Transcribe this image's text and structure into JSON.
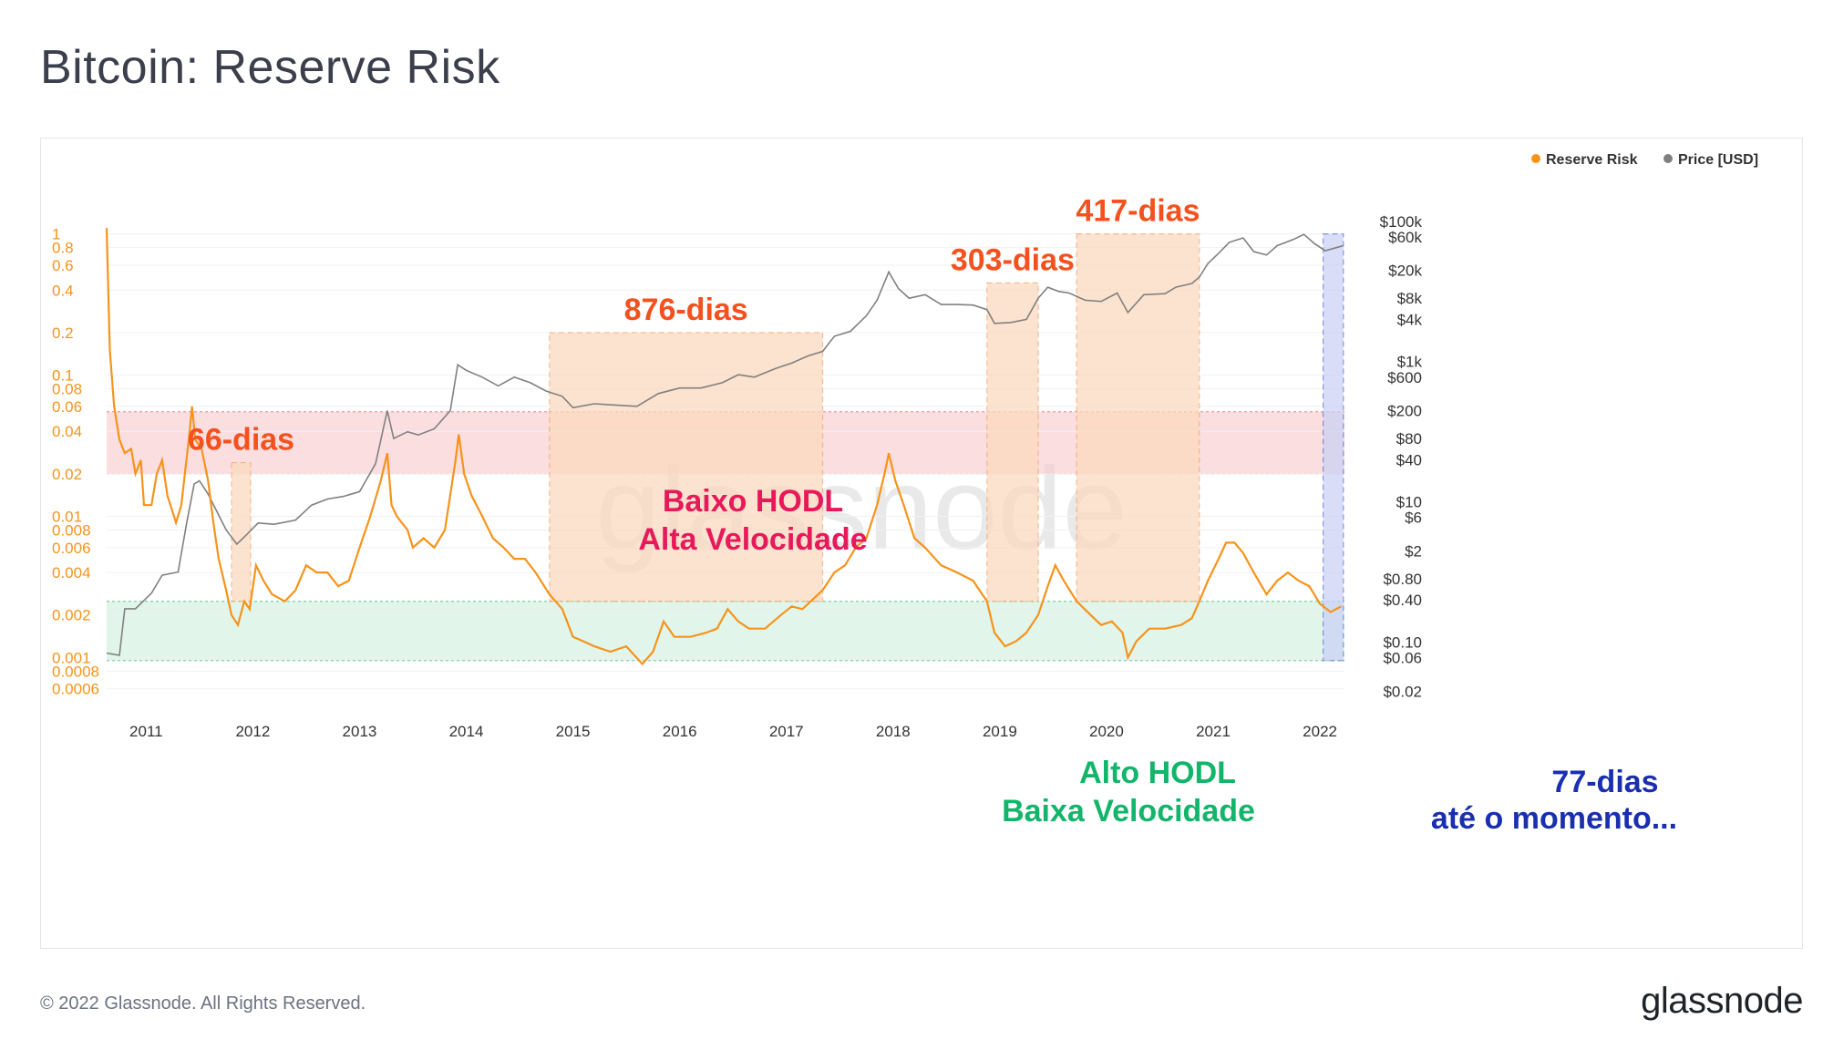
{
  "header": {
    "title": "Bitcoin: Reserve Risk"
  },
  "footer": {
    "copyright": "© 2022 Glassnode. All Rights Reserved.",
    "brand": "glassnode"
  },
  "watermark": "glassnode",
  "colors": {
    "reserve_risk": "#f7931a",
    "price": "#808080",
    "high_band": "#f9c8cc",
    "low_band": "#cdeedd",
    "period": "#fcd9bd",
    "current": "#c9d0f5",
    "orange_text": "#f4511e",
    "red_text": "#e8195a",
    "green_text": "#12b56a",
    "blue_text": "#1a2fb0"
  },
  "chart_data": {
    "type": "line",
    "title": "Bitcoin: Reserve Risk",
    "legend": [
      {
        "name": "Reserve Risk",
        "color": "#f7931a"
      },
      {
        "name": "Price [USD]",
        "color": "#808080"
      }
    ],
    "legend_position": "top-right",
    "x_ticks": [
      "2011",
      "2012",
      "2013",
      "2014",
      "2015",
      "2016",
      "2017",
      "2018",
      "2019",
      "2020",
      "2021",
      "2022"
    ],
    "x_range": [
      2010.63,
      2022.23
    ],
    "y_left": {
      "scale": "log",
      "range": [
        0.0005,
        1.4
      ],
      "ticks": [
        {
          "v": 1,
          "t": "1"
        },
        {
          "v": 0.8,
          "t": "0.8"
        },
        {
          "v": 0.6,
          "t": "0.6"
        },
        {
          "v": 0.4,
          "t": "0.4"
        },
        {
          "v": 0.2,
          "t": "0.2"
        },
        {
          "v": 0.1,
          "t": "0.1"
        },
        {
          "v": 0.08,
          "t": "0.08"
        },
        {
          "v": 0.06,
          "t": "0.06"
        },
        {
          "v": 0.04,
          "t": "0.04"
        },
        {
          "v": 0.02,
          "t": "0.02"
        },
        {
          "v": 0.01,
          "t": "0.01"
        },
        {
          "v": 0.008,
          "t": "0.008"
        },
        {
          "v": 0.006,
          "t": "0.006"
        },
        {
          "v": 0.004,
          "t": "0.004"
        },
        {
          "v": 0.002,
          "t": "0.002"
        },
        {
          "v": 0.001,
          "t": "0.001"
        },
        {
          "v": 0.0008,
          "t": "0.0008"
        },
        {
          "v": 0.0006,
          "t": "0.0006"
        }
      ]
    },
    "y_right": {
      "scale": "log",
      "range": [
        0.015,
        130000
      ],
      "ticks": [
        {
          "v": 100000,
          "t": "$100k"
        },
        {
          "v": 60000,
          "t": "$60k"
        },
        {
          "v": 20000,
          "t": "$20k"
        },
        {
          "v": 8000,
          "t": "$8k"
        },
        {
          "v": 4000,
          "t": "$4k"
        },
        {
          "v": 1000,
          "t": "$1k"
        },
        {
          "v": 600,
          "t": "$600"
        },
        {
          "v": 200,
          "t": "$200"
        },
        {
          "v": 80,
          "t": "$80"
        },
        {
          "v": 40,
          "t": "$40"
        },
        {
          "v": 10,
          "t": "$10"
        },
        {
          "v": 6,
          "t": "$6"
        },
        {
          "v": 2,
          "t": "$2"
        },
        {
          "v": 0.8,
          "t": "$0.80"
        },
        {
          "v": 0.4,
          "t": "$0.40"
        },
        {
          "v": 0.1,
          "t": "$0.10"
        },
        {
          "v": 0.06,
          "t": "$0.06"
        },
        {
          "v": 0.02,
          "t": "$0.02"
        }
      ]
    },
    "bands": [
      {
        "name": "high-band",
        "from": 0.02,
        "to": 0.055,
        "color": "#f9c8cc"
      },
      {
        "name": "low-band",
        "from": 0.00095,
        "to": 0.0025,
        "color": "#cdeedd"
      }
    ],
    "periods": [
      {
        "label": "66-dias",
        "x0": 2011.8,
        "x1": 2011.98,
        "top": 0.024
      },
      {
        "label": "876-dias",
        "x0": 2014.78,
        "x1": 2017.34,
        "top": 0.2
      },
      {
        "label": "303-dias",
        "x0": 2018.88,
        "x1": 2019.36,
        "top": 0.45
      },
      {
        "label": "417-dias",
        "x0": 2019.72,
        "x1": 2020.87,
        "top": 1.0
      }
    ],
    "current_period": {
      "label": "77-dias",
      "sublabel": "até o momento...",
      "x0": 2022.03,
      "x1": 2022.22,
      "top": 1.0
    },
    "labels": {
      "high": [
        "Baixo HODL",
        "Alta Velocidade"
      ],
      "low": [
        "Alto HODL",
        "Baixa Velocidade"
      ]
    },
    "reserve_risk": [
      [
        2010.63,
        1.1
      ],
      [
        2010.66,
        0.15
      ],
      [
        2010.7,
        0.06
      ],
      [
        2010.75,
        0.035
      ],
      [
        2010.8,
        0.028
      ],
      [
        2010.86,
        0.03
      ],
      [
        2010.9,
        0.02
      ],
      [
        2010.95,
        0.025
      ],
      [
        2010.98,
        0.012
      ],
      [
        2011.05,
        0.012
      ],
      [
        2011.1,
        0.02
      ],
      [
        2011.15,
        0.025
      ],
      [
        2011.2,
        0.014
      ],
      [
        2011.28,
        0.009
      ],
      [
        2011.33,
        0.012
      ],
      [
        2011.4,
        0.035
      ],
      [
        2011.43,
        0.06
      ],
      [
        2011.46,
        0.035
      ],
      [
        2011.52,
        0.03
      ],
      [
        2011.58,
        0.018
      ],
      [
        2011.63,
        0.009
      ],
      [
        2011.68,
        0.005
      ],
      [
        2011.75,
        0.003
      ],
      [
        2011.8,
        0.002
      ],
      [
        2011.86,
        0.0017
      ],
      [
        2011.92,
        0.0025
      ],
      [
        2011.97,
        0.0022
      ],
      [
        2012.03,
        0.0045
      ],
      [
        2012.1,
        0.0035
      ],
      [
        2012.18,
        0.0028
      ],
      [
        2012.3,
        0.0025
      ],
      [
        2012.4,
        0.003
      ],
      [
        2012.5,
        0.0045
      ],
      [
        2012.6,
        0.004
      ],
      [
        2012.7,
        0.004
      ],
      [
        2012.8,
        0.0032
      ],
      [
        2012.9,
        0.0035
      ],
      [
        2013.0,
        0.006
      ],
      [
        2013.1,
        0.01
      ],
      [
        2013.2,
        0.018
      ],
      [
        2013.26,
        0.028
      ],
      [
        2013.3,
        0.012
      ],
      [
        2013.35,
        0.01
      ],
      [
        2013.45,
        0.008
      ],
      [
        2013.5,
        0.006
      ],
      [
        2013.6,
        0.007
      ],
      [
        2013.7,
        0.006
      ],
      [
        2013.8,
        0.008
      ],
      [
        2013.9,
        0.025
      ],
      [
        2013.93,
        0.038
      ],
      [
        2013.98,
        0.02
      ],
      [
        2014.05,
        0.014
      ],
      [
        2014.15,
        0.01
      ],
      [
        2014.25,
        0.007
      ],
      [
        2014.35,
        0.006
      ],
      [
        2014.45,
        0.005
      ],
      [
        2014.55,
        0.005
      ],
      [
        2014.65,
        0.004
      ],
      [
        2014.78,
        0.0028
      ],
      [
        2014.9,
        0.0022
      ],
      [
        2015.0,
        0.0014
      ],
      [
        2015.1,
        0.0013
      ],
      [
        2015.2,
        0.0012
      ],
      [
        2015.35,
        0.0011
      ],
      [
        2015.5,
        0.0012
      ],
      [
        2015.65,
        0.0009
      ],
      [
        2015.75,
        0.0011
      ],
      [
        2015.85,
        0.0018
      ],
      [
        2015.95,
        0.0014
      ],
      [
        2016.1,
        0.0014
      ],
      [
        2016.25,
        0.0015
      ],
      [
        2016.35,
        0.0016
      ],
      [
        2016.45,
        0.0022
      ],
      [
        2016.55,
        0.0018
      ],
      [
        2016.65,
        0.0016
      ],
      [
        2016.8,
        0.0016
      ],
      [
        2016.95,
        0.002
      ],
      [
        2017.05,
        0.0023
      ],
      [
        2017.15,
        0.0022
      ],
      [
        2017.34,
        0.003
      ],
      [
        2017.45,
        0.004
      ],
      [
        2017.55,
        0.0045
      ],
      [
        2017.65,
        0.006
      ],
      [
        2017.75,
        0.007
      ],
      [
        2017.85,
        0.012
      ],
      [
        2017.92,
        0.02
      ],
      [
        2017.96,
        0.028
      ],
      [
        2018.02,
        0.018
      ],
      [
        2018.1,
        0.012
      ],
      [
        2018.2,
        0.007
      ],
      [
        2018.3,
        0.006
      ],
      [
        2018.45,
        0.0045
      ],
      [
        2018.6,
        0.004
      ],
      [
        2018.75,
        0.0035
      ],
      [
        2018.88,
        0.0025
      ],
      [
        2018.95,
        0.0015
      ],
      [
        2019.05,
        0.0012
      ],
      [
        2019.15,
        0.0013
      ],
      [
        2019.25,
        0.0015
      ],
      [
        2019.36,
        0.002
      ],
      [
        2019.45,
        0.0032
      ],
      [
        2019.52,
        0.0045
      ],
      [
        2019.6,
        0.0035
      ],
      [
        2019.72,
        0.0025
      ],
      [
        2019.85,
        0.002
      ],
      [
        2019.95,
        0.0017
      ],
      [
        2020.05,
        0.0018
      ],
      [
        2020.15,
        0.0015
      ],
      [
        2020.2,
        0.001
      ],
      [
        2020.28,
        0.0013
      ],
      [
        2020.4,
        0.0016
      ],
      [
        2020.55,
        0.0016
      ],
      [
        2020.7,
        0.0017
      ],
      [
        2020.8,
        0.0019
      ],
      [
        2020.87,
        0.0025
      ],
      [
        2020.95,
        0.0035
      ],
      [
        2021.05,
        0.005
      ],
      [
        2021.12,
        0.0065
      ],
      [
        2021.2,
        0.0065
      ],
      [
        2021.28,
        0.0055
      ],
      [
        2021.38,
        0.004
      ],
      [
        2021.5,
        0.0028
      ],
      [
        2021.6,
        0.0035
      ],
      [
        2021.7,
        0.004
      ],
      [
        2021.8,
        0.0035
      ],
      [
        2021.9,
        0.0032
      ],
      [
        2022.0,
        0.0024
      ],
      [
        2022.1,
        0.0021
      ],
      [
        2022.2,
        0.0023
      ]
    ],
    "price_usd": [
      [
        2010.63,
        0.07
      ],
      [
        2010.75,
        0.065
      ],
      [
        2010.8,
        0.3
      ],
      [
        2010.9,
        0.3
      ],
      [
        2011.05,
        0.5
      ],
      [
        2011.15,
        0.9
      ],
      [
        2011.3,
        1.0
      ],
      [
        2011.38,
        5
      ],
      [
        2011.45,
        18
      ],
      [
        2011.5,
        20
      ],
      [
        2011.58,
        13
      ],
      [
        2011.65,
        8
      ],
      [
        2011.75,
        4
      ],
      [
        2011.85,
        2.5
      ],
      [
        2011.95,
        3.5
      ],
      [
        2012.05,
        5
      ],
      [
        2012.2,
        4.8
      ],
      [
        2012.4,
        5.5
      ],
      [
        2012.55,
        9
      ],
      [
        2012.7,
        11
      ],
      [
        2012.85,
        12
      ],
      [
        2013.0,
        14
      ],
      [
        2013.15,
        35
      ],
      [
        2013.26,
        200
      ],
      [
        2013.32,
        80
      ],
      [
        2013.45,
        100
      ],
      [
        2013.55,
        90
      ],
      [
        2013.7,
        110
      ],
      [
        2013.85,
        200
      ],
      [
        2013.92,
        900
      ],
      [
        2014.0,
        750
      ],
      [
        2014.15,
        600
      ],
      [
        2014.3,
        450
      ],
      [
        2014.45,
        600
      ],
      [
        2014.6,
        500
      ],
      [
        2014.75,
        380
      ],
      [
        2014.9,
        320
      ],
      [
        2015.0,
        220
      ],
      [
        2015.2,
        250
      ],
      [
        2015.4,
        240
      ],
      [
        2015.6,
        230
      ],
      [
        2015.8,
        350
      ],
      [
        2016.0,
        420
      ],
      [
        2016.2,
        420
      ],
      [
        2016.4,
        500
      ],
      [
        2016.55,
        650
      ],
      [
        2016.7,
        600
      ],
      [
        2016.9,
        800
      ],
      [
        2017.05,
        950
      ],
      [
        2017.2,
        1200
      ],
      [
        2017.34,
        1400
      ],
      [
        2017.45,
        2300
      ],
      [
        2017.6,
        2700
      ],
      [
        2017.75,
        4500
      ],
      [
        2017.85,
        7500
      ],
      [
        2017.96,
        19000
      ],
      [
        2018.05,
        11000
      ],
      [
        2018.15,
        8000
      ],
      [
        2018.3,
        9000
      ],
      [
        2018.45,
        6500
      ],
      [
        2018.6,
        6500
      ],
      [
        2018.75,
        6400
      ],
      [
        2018.88,
        5500
      ],
      [
        2018.95,
        3500
      ],
      [
        2019.1,
        3600
      ],
      [
        2019.25,
        4000
      ],
      [
        2019.36,
        8000
      ],
      [
        2019.45,
        11500
      ],
      [
        2019.55,
        10000
      ],
      [
        2019.65,
        9500
      ],
      [
        2019.8,
        7500
      ],
      [
        2019.95,
        7200
      ],
      [
        2020.1,
        9500
      ],
      [
        2020.2,
        5000
      ],
      [
        2020.35,
        9000
      ],
      [
        2020.55,
        9300
      ],
      [
        2020.65,
        11500
      ],
      [
        2020.8,
        13000
      ],
      [
        2020.87,
        16000
      ],
      [
        2020.95,
        25000
      ],
      [
        2021.05,
        35000
      ],
      [
        2021.15,
        50000
      ],
      [
        2021.28,
        58000
      ],
      [
        2021.38,
        37000
      ],
      [
        2021.5,
        33000
      ],
      [
        2021.6,
        45000
      ],
      [
        2021.75,
        55000
      ],
      [
        2021.85,
        65000
      ],
      [
        2021.95,
        48000
      ],
      [
        2022.05,
        38000
      ],
      [
        2022.15,
        42000
      ],
      [
        2022.22,
        45000
      ]
    ]
  }
}
